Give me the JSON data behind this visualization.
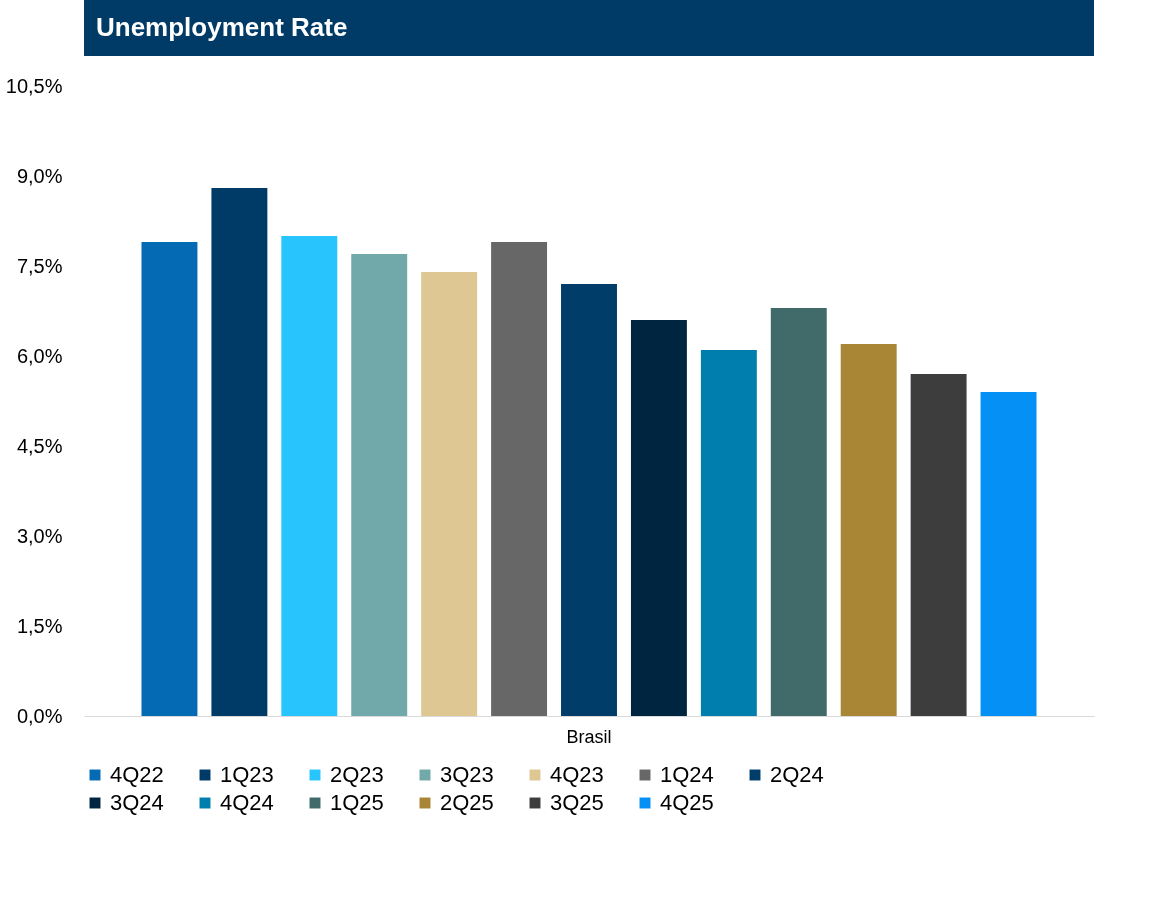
{
  "chart_data": {
    "type": "bar",
    "title": "Unemployment Rate",
    "categories": [
      "Brasil"
    ],
    "series": [
      {
        "name": "4Q22",
        "color": "#046ab4",
        "values": [
          7.9
        ]
      },
      {
        "name": "1Q23",
        "color": "#003a66",
        "values": [
          8.8
        ]
      },
      {
        "name": "2Q23",
        "color": "#27c4fe",
        "values": [
          8.0
        ]
      },
      {
        "name": "3Q23",
        "color": "#71a8a9",
        "values": [
          7.7
        ]
      },
      {
        "name": "4Q23",
        "color": "#dfc793",
        "values": [
          7.4
        ]
      },
      {
        "name": "1Q24",
        "color": "#676767",
        "values": [
          7.9
        ]
      },
      {
        "name": "2Q24",
        "color": "#003d69",
        "values": [
          7.2
        ]
      },
      {
        "name": "3Q24",
        "color": "#002540",
        "values": [
          6.6
        ]
      },
      {
        "name": "4Q24",
        "color": "#007eae",
        "values": [
          6.1
        ]
      },
      {
        "name": "1Q25",
        "color": "#416a6a",
        "values": [
          6.8
        ]
      },
      {
        "name": "2Q25",
        "color": "#a98636",
        "values": [
          6.2
        ]
      },
      {
        "name": "3Q25",
        "color": "#3d3d3d",
        "values": [
          5.7
        ]
      },
      {
        "name": "4Q25",
        "color": "#0590f5",
        "values": [
          5.4
        ]
      }
    ],
    "ylim": [
      0,
      10.5
    ],
    "yticks": [
      {
        "value": 0,
        "label": "0,0%"
      },
      {
        "value": 1.5,
        "label": "1,5%"
      },
      {
        "value": 3,
        "label": "3,0%"
      },
      {
        "value": 4.5,
        "label": "4,5%"
      },
      {
        "value": 6,
        "label": "6,0%"
      },
      {
        "value": 7.5,
        "label": "7,5%"
      },
      {
        "value": 9,
        "label": "9,0%"
      },
      {
        "value": 10.5,
        "label": "10,5%"
      }
    ],
    "grid": false,
    "legend": "bottom"
  }
}
